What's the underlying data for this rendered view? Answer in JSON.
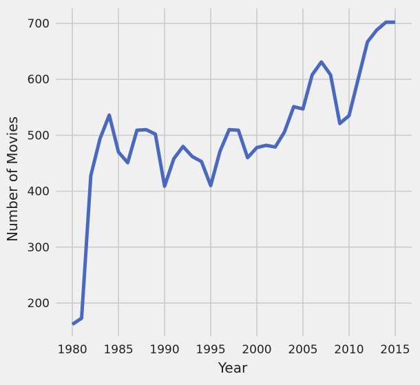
{
  "chart_data": {
    "type": "line",
    "title": "",
    "xlabel": "Year",
    "ylabel": "Number of Movies",
    "xlim": [
      1978.2,
      2016.8
    ],
    "ylim": [
      141,
      727
    ],
    "xticks": [
      1980,
      1985,
      1990,
      1995,
      2000,
      2005,
      2010,
      2015
    ],
    "yticks": [
      200,
      300,
      400,
      500,
      600,
      700
    ],
    "grid": true,
    "legend": "none",
    "series": [
      {
        "color": "#4a68be",
        "x": [
          1980,
          1981,
          1982,
          1983,
          1984,
          1985,
          1986,
          1987,
          1988,
          1989,
          1990,
          1991,
          1992,
          1993,
          1994,
          1995,
          1996,
          1997,
          1998,
          1999,
          2000,
          2001,
          2002,
          2003,
          2004,
          2005,
          2006,
          2007,
          2008,
          2009,
          2010,
          2011,
          2012,
          2013,
          2014,
          2015
        ],
        "y": [
          162,
          173,
          428,
          494,
          536,
          470,
          451,
          509,
          510,
          502,
          409,
          458,
          480,
          462,
          453,
          410,
          471,
          510,
          509,
          460,
          478,
          482,
          479,
          506,
          551,
          547,
          608,
          631,
          608,
          521,
          535,
          601,
          667,
          688,
          702,
          702
        ]
      }
    ]
  },
  "colors": {
    "background": "#f0f0f0",
    "grid": "#cbcbcb",
    "line": "#4a68be",
    "text": "#222222"
  }
}
